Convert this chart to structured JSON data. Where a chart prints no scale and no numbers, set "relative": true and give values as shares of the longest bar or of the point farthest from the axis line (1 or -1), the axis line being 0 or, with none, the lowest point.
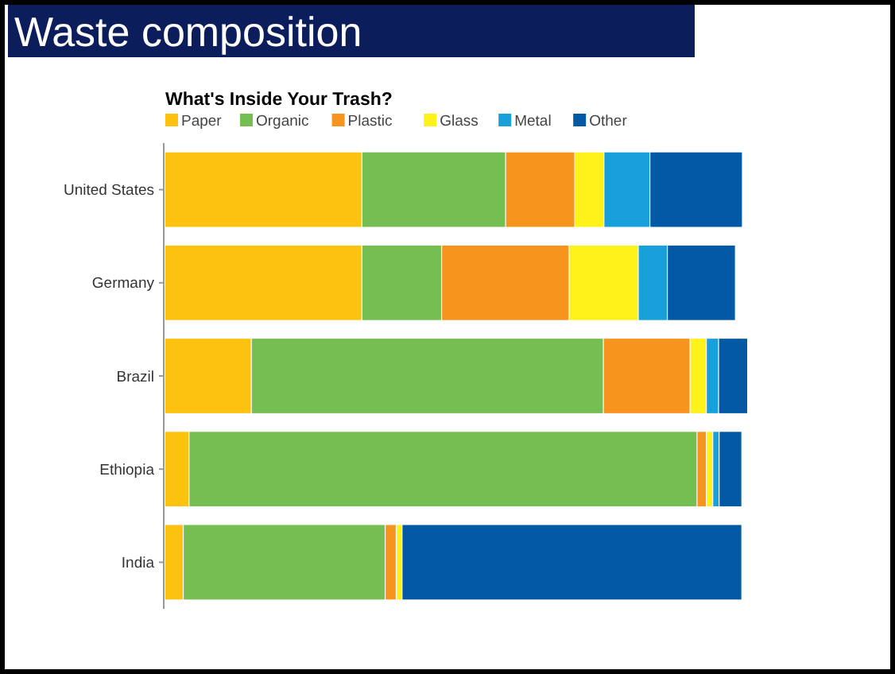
{
  "chart_data": {
    "type": "bar",
    "orientation": "horizontal",
    "stacked": true,
    "relative": true,
    "title": "Waste composition",
    "subtitle": "What's Inside Your Trash?",
    "categories": [
      "United States",
      "Germany",
      "Brazil",
      "Ethiopia",
      "India"
    ],
    "series": [
      {
        "name": "Paper",
        "color": "#fdc20f",
        "values": [
          0.337,
          0.337,
          0.147,
          0.04,
          0.03
        ]
      },
      {
        "name": "Organic",
        "color": "#75be51",
        "values": [
          0.247,
          0.137,
          0.605,
          0.873,
          0.347
        ]
      },
      {
        "name": "Plastic",
        "color": "#f7941e",
        "values": [
          0.119,
          0.219,
          0.149,
          0.016,
          0.019
        ]
      },
      {
        "name": "Glass",
        "color": "#fff11a",
        "values": [
          0.05,
          0.119,
          0.028,
          0.011,
          0.01
        ]
      },
      {
        "name": "Metal",
        "color": "#18a0db",
        "values": [
          0.079,
          0.05,
          0.021,
          0.011,
          0
        ]
      },
      {
        "name": "Other",
        "color": "#0359a4",
        "values": [
          0.159,
          0.117,
          0.05,
          0.039,
          0.584
        ]
      }
    ],
    "legend": "top",
    "grid": false
  }
}
